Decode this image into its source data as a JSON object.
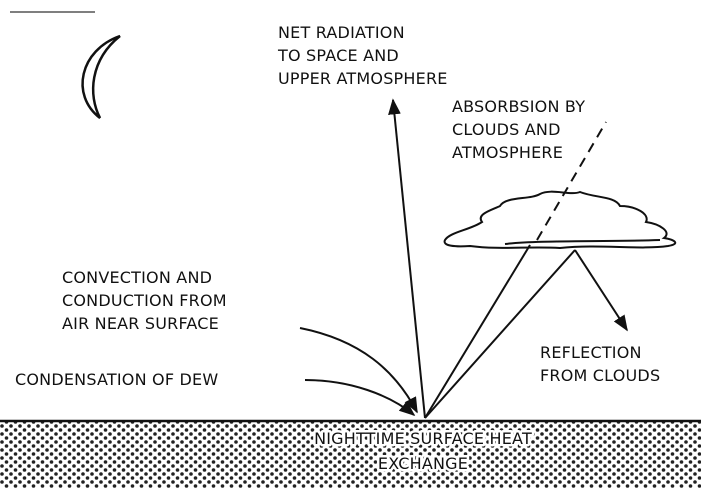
{
  "labels": {
    "net_radiation": [
      "NET RADIATION",
      "TO SPACE AND",
      "UPPER ATMOSPHERE"
    ],
    "absorbsion": [
      "ABSORBSION BY",
      "CLOUDS AND",
      "ATMOSPHERE"
    ],
    "convection": [
      "CONVECTION AND",
      "CONDUCTION FROM",
      "AIR NEAR SURFACE"
    ],
    "condensation": [
      "CONDENSATION OF DEW"
    ],
    "reflection": [
      "REFLECTION",
      "FROM CLOUDS"
    ],
    "surface": [
      "NIGHTTIME SURFACE HEAT",
      "EXCHANGE"
    ]
  }
}
